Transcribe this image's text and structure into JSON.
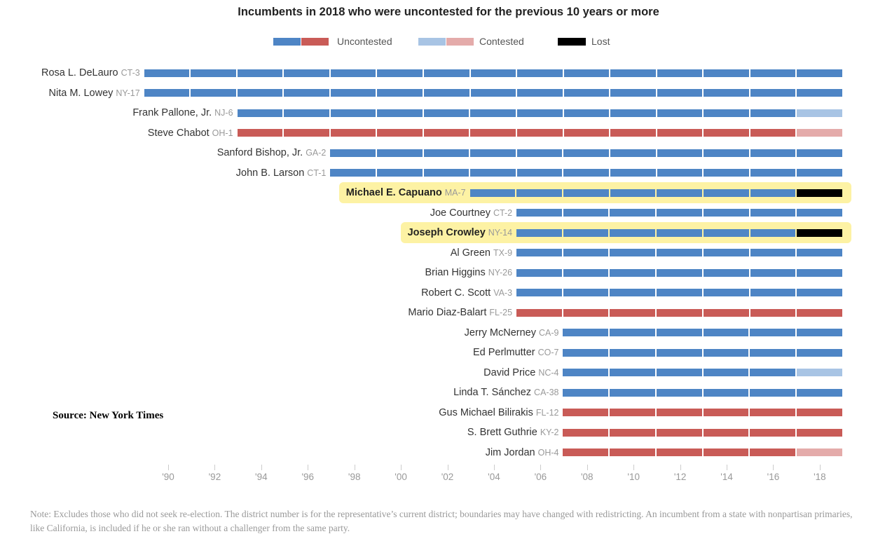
{
  "chart_data": {
    "type": "bar",
    "title": "Incumbents in 2018 who were uncontested for the previous 10 years or more",
    "legend": [
      {
        "label": "Uncontested",
        "colors": [
          "#4e85c5",
          "#c95b57"
        ]
      },
      {
        "label": "Contested",
        "colors": [
          "#a8c4e4",
          "#e4abaa"
        ]
      },
      {
        "label": "Lost",
        "colors": [
          "#000000"
        ]
      }
    ],
    "colors": {
      "D_uncontested": "#4e85c5",
      "R_uncontested": "#c95b57",
      "D_contested": "#a8c4e4",
      "R_contested": "#e4abaa",
      "lost": "#000000",
      "highlight": "#fdf2a4"
    },
    "x_ticks": [
      "'90",
      "'92",
      "'94",
      "'96",
      "'98",
      "'00",
      "'02",
      "'04",
      "'06",
      "'08",
      "'10",
      "'12",
      "'14",
      "'16",
      "'18"
    ],
    "xlim": [
      1989,
      2019
    ],
    "rows": [
      {
        "name": "Rosa L. DeLauro",
        "district": "CT-3",
        "party": "D",
        "first_election": 1990,
        "result_2018": "uncontested",
        "highlighted": false
      },
      {
        "name": "Nita M. Lowey",
        "district": "NY-17",
        "party": "D",
        "first_election": 1990,
        "result_2018": "uncontested",
        "highlighted": false
      },
      {
        "name": "Frank Pallone, Jr.",
        "district": "NJ-6",
        "party": "D",
        "first_election": 1994,
        "result_2018": "contested",
        "highlighted": false
      },
      {
        "name": "Steve Chabot",
        "district": "OH-1",
        "party": "R",
        "first_election": 1994,
        "result_2018": "contested",
        "highlighted": false
      },
      {
        "name": "Sanford Bishop, Jr.",
        "district": "GA-2",
        "party": "D",
        "first_election": 1998,
        "result_2018": "uncontested",
        "highlighted": false
      },
      {
        "name": "John B. Larson",
        "district": "CT-1",
        "party": "D",
        "first_election": 1998,
        "result_2018": "uncontested",
        "highlighted": false
      },
      {
        "name": "Michael E. Capuano",
        "district": "MA-7",
        "party": "D",
        "first_election": 2004,
        "result_2018": "lost",
        "highlighted": true
      },
      {
        "name": "Joe Courtney",
        "district": "CT-2",
        "party": "D",
        "first_election": 2006,
        "result_2018": "uncontested",
        "highlighted": false
      },
      {
        "name": "Joseph Crowley",
        "district": "NY-14",
        "party": "D",
        "first_election": 2006,
        "result_2018": "lost",
        "highlighted": true
      },
      {
        "name": "Al Green",
        "district": "TX-9",
        "party": "D",
        "first_election": 2006,
        "result_2018": "uncontested",
        "highlighted": false
      },
      {
        "name": "Brian Higgins",
        "district": "NY-26",
        "party": "D",
        "first_election": 2006,
        "result_2018": "uncontested",
        "highlighted": false
      },
      {
        "name": "Robert C. Scott",
        "district": "VA-3",
        "party": "D",
        "first_election": 2006,
        "result_2018": "uncontested",
        "highlighted": false
      },
      {
        "name": "Mario Diaz-Balart",
        "district": "FL-25",
        "party": "R",
        "first_election": 2006,
        "result_2018": "uncontested",
        "highlighted": false
      },
      {
        "name": "Jerry McNerney",
        "district": "CA-9",
        "party": "D",
        "first_election": 2008,
        "result_2018": "uncontested",
        "highlighted": false
      },
      {
        "name": "Ed Perlmutter",
        "district": "CO-7",
        "party": "D",
        "first_election": 2008,
        "result_2018": "uncontested",
        "highlighted": false
      },
      {
        "name": "David Price",
        "district": "NC-4",
        "party": "D",
        "first_election": 2008,
        "result_2018": "contested",
        "highlighted": false
      },
      {
        "name": "Linda T. Sánchez",
        "district": "CA-38",
        "party": "D",
        "first_election": 2008,
        "result_2018": "uncontested",
        "highlighted": false
      },
      {
        "name": "Gus Michael Bilirakis",
        "district": "FL-12",
        "party": "R",
        "first_election": 2008,
        "result_2018": "uncontested",
        "highlighted": false
      },
      {
        "name": "S. Brett Guthrie",
        "district": "KY-2",
        "party": "R",
        "first_election": 2008,
        "result_2018": "uncontested",
        "highlighted": false
      },
      {
        "name": "Jim Jordan",
        "district": "OH-4",
        "party": "R",
        "first_election": 2008,
        "result_2018": "contested",
        "highlighted": false
      }
    ]
  },
  "source": "Source: New York Times",
  "note": "Note: Excludes those who did not seek re-election. The district number is for the representative’s current district; boundaries may have changed with redistricting. An incumbent from a state with nonpartisan primaries, like California, is included if he or she ran without a challenger from the same party."
}
